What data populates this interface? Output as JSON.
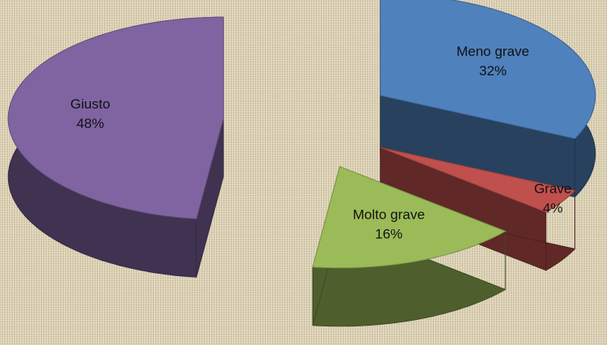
{
  "chart_data": {
    "type": "pie",
    "categories": [
      "Meno grave",
      "Grave",
      "Molto grave",
      "Giusto"
    ],
    "values": [
      32,
      4,
      16,
      48
    ],
    "value_labels": [
      "32%",
      "4%",
      "16%",
      "48%"
    ],
    "colors": [
      "#4f81bd",
      "#c0504d",
      "#9bbb59",
      "#8064a2"
    ]
  }
}
